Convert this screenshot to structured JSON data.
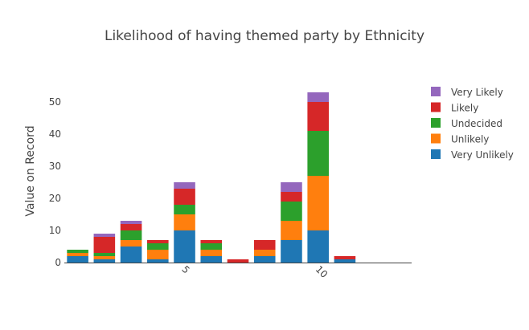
{
  "chart_data": {
    "type": "bar",
    "stacked": true,
    "title": "Likelihood of having themed party by Ethnicity",
    "xlabel": "",
    "ylabel": "Value on Record",
    "x": [
      3,
      4,
      5,
      6,
      7,
      8,
      9,
      10,
      11,
      12,
      13
    ],
    "x_tick_labels": [
      {
        "x": 7,
        "label": "5"
      },
      {
        "x": 12,
        "label": "10"
      }
    ],
    "xlim": [
      2.5,
      15.5
    ],
    "ylim": [
      0,
      58
    ],
    "y_ticks": [
      0,
      10,
      20,
      30,
      40,
      50
    ],
    "grid": false,
    "legend_position": "right",
    "series": [
      {
        "name": "Very Unlikely",
        "color": "#1f77b4",
        "values": [
          2,
          1,
          5,
          1,
          10,
          2,
          0,
          2,
          7,
          10,
          1
        ]
      },
      {
        "name": "Unlikely",
        "color": "#ff7f0e",
        "values": [
          1,
          1,
          2,
          3,
          5,
          2,
          0,
          2,
          6,
          17,
          0
        ]
      },
      {
        "name": "Undecided",
        "color": "#2ca02c",
        "values": [
          1,
          1,
          3,
          2,
          3,
          2,
          0,
          0,
          6,
          14,
          0
        ]
      },
      {
        "name": "Likely",
        "color": "#d62728",
        "values": [
          0,
          5,
          2,
          1,
          5,
          1,
          1,
          3,
          3,
          9,
          1
        ]
      },
      {
        "name": "Very Likely",
        "color": "#9467bd",
        "values": [
          0,
          1,
          1,
          0,
          2,
          0,
          0,
          0,
          3,
          3,
          0
        ]
      }
    ]
  }
}
